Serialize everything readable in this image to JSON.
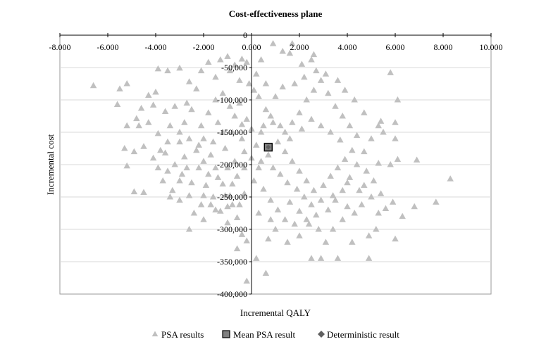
{
  "chart_data": {
    "type": "scatter",
    "title": "Cost-effectiveness plane",
    "xlabel": "Incremental QALY",
    "ylabel": "Incremental cost",
    "xlim": [
      -8,
      10
    ],
    "ylim": [
      -400000,
      0
    ],
    "grid": {
      "horizontal": true,
      "vertical": false
    },
    "legend_position": "bottom",
    "x_ticks": [
      {
        "value": -8,
        "label": "-8.000"
      },
      {
        "value": -6,
        "label": "-6.000"
      },
      {
        "value": -4,
        "label": "-4.000"
      },
      {
        "value": -2,
        "label": "-2.000"
      },
      {
        "value": 0,
        "label": "0.000"
      },
      {
        "value": 2,
        "label": "2.000"
      },
      {
        "value": 4,
        "label": "4.000"
      },
      {
        "value": 6,
        "label": "6.000"
      },
      {
        "value": 8,
        "label": "8.000"
      },
      {
        "value": 10,
        "label": "10.000"
      }
    ],
    "y_ticks": [
      {
        "value": 0,
        "label": "0"
      },
      {
        "value": -50000,
        "label": "-50,000"
      },
      {
        "value": -100000,
        "label": "-100,000"
      },
      {
        "value": -150000,
        "label": "-150,000"
      },
      {
        "value": -200000,
        "label": "-200,000"
      },
      {
        "value": -250000,
        "label": "-250,000"
      },
      {
        "value": -300000,
        "label": "-300,000"
      },
      {
        "value": -350000,
        "label": "-350,000"
      },
      {
        "value": -400000,
        "label": "-400,000"
      }
    ],
    "series": [
      {
        "name": "PSA results",
        "marker": "triangle",
        "color": "#c0c0c0",
        "points": [
          [
            -6.6,
            -78000
          ],
          [
            -5.5,
            -83000
          ],
          [
            -5.2,
            -75000
          ],
          [
            -5.6,
            -107000
          ],
          [
            -5.2,
            -140000
          ],
          [
            -5.3,
            -175000
          ],
          [
            -5.2,
            -202000
          ],
          [
            -4.9,
            -242000
          ],
          [
            -4.5,
            -243000
          ],
          [
            -4.5,
            -172000
          ],
          [
            -4.9,
            -180000
          ],
          [
            -4.7,
            -140000
          ],
          [
            -4.8,
            -129000
          ],
          [
            -4.6,
            -113000
          ],
          [
            -4.3,
            -93000
          ],
          [
            -4.0,
            -88000
          ],
          [
            -3.9,
            -52000
          ],
          [
            -3.5,
            -55000
          ],
          [
            -3.0,
            -51000
          ],
          [
            -2.6,
            -72000
          ],
          [
            -2.7,
            -105000
          ],
          [
            -2.3,
            -83000
          ],
          [
            -2.1,
            -55000
          ],
          [
            -1.8,
            -42000
          ],
          [
            -1.3,
            -38000
          ],
          [
            -1.0,
            -33000
          ],
          [
            -0.7,
            -46000
          ],
          [
            -0.4,
            -37000
          ],
          [
            -0.2,
            -42000
          ],
          [
            0.4,
            -38000
          ],
          [
            0.9,
            -13000
          ],
          [
            1.3,
            -25000
          ],
          [
            1.7,
            -13000
          ],
          [
            2.1,
            -45000
          ],
          [
            2.5,
            -38000
          ],
          [
            2.6,
            -30000
          ],
          [
            1.6,
            -28000
          ],
          [
            -0.9,
            -55000
          ],
          [
            -1.5,
            -65000
          ],
          [
            -0.5,
            -70000
          ],
          [
            -4.1,
            -108000
          ],
          [
            -3.6,
            -118000
          ],
          [
            -3.2,
            -110000
          ],
          [
            -4.3,
            -135000
          ],
          [
            -3.9,
            -152000
          ],
          [
            -3.4,
            -140000
          ],
          [
            -3.0,
            -165000
          ],
          [
            -3.6,
            -182000
          ],
          [
            -3.2,
            -200000
          ],
          [
            -2.8,
            -188000
          ],
          [
            -3.7,
            -225000
          ],
          [
            -3.3,
            -240000
          ],
          [
            -3.0,
            -255000
          ],
          [
            -2.6,
            -248000
          ],
          [
            -2.4,
            -275000
          ],
          [
            -3.4,
            -250000
          ],
          [
            -3.9,
            -205000
          ],
          [
            -2.9,
            -215000
          ],
          [
            -2.5,
            -228000
          ],
          [
            -2.2,
            -205000
          ],
          [
            -1.9,
            -232000
          ],
          [
            -1.6,
            -250000
          ],
          [
            -1.3,
            -272000
          ],
          [
            -1.0,
            -290000
          ],
          [
            -0.6,
            -282000
          ],
          [
            -0.4,
            -308000
          ],
          [
            -0.2,
            -318000
          ],
          [
            -0.6,
            -330000
          ],
          [
            -0.2,
            -380000
          ],
          [
            0.6,
            -368000
          ],
          [
            0.2,
            -345000
          ],
          [
            -1.0,
            -265000
          ],
          [
            -1.5,
            -270000
          ],
          [
            -2.0,
            -285000
          ],
          [
            -2.6,
            -300000
          ],
          [
            -2.3,
            -178000
          ],
          [
            -2.0,
            -160000
          ],
          [
            -2.1,
            -140000
          ],
          [
            -1.8,
            -120000
          ],
          [
            -2.5,
            -115000
          ],
          [
            -2.8,
            -135000
          ],
          [
            -1.5,
            -100000
          ],
          [
            -1.2,
            -90000
          ],
          [
            -0.9,
            -110000
          ],
          [
            -1.4,
            -135000
          ],
          [
            -0.8,
            -150000
          ],
          [
            -1.1,
            -175000
          ],
          [
            -0.7,
            -195000
          ],
          [
            -1.5,
            -205000
          ],
          [
            -1.2,
            -230000
          ],
          [
            -0.9,
            -248000
          ],
          [
            -0.5,
            -262000
          ],
          [
            -0.3,
            -245000
          ],
          [
            -0.6,
            -218000
          ],
          [
            -0.3,
            -180000
          ],
          [
            -0.4,
            -160000
          ],
          [
            -0.2,
            -130000
          ],
          [
            -0.5,
            -105000
          ],
          [
            0.1,
            -85000
          ],
          [
            0.3,
            -95000
          ],
          [
            0.6,
            -115000
          ],
          [
            0.9,
            -135000
          ],
          [
            0.4,
            -150000
          ],
          [
            0.2,
            -170000
          ],
          [
            0.7,
            -185000
          ],
          [
            0.3,
            -205000
          ],
          [
            0.1,
            -225000
          ],
          [
            0.5,
            -238000
          ],
          [
            0.8,
            -255000
          ],
          [
            1.1,
            -270000
          ],
          [
            1.4,
            -285000
          ],
          [
            1.0,
            -300000
          ],
          [
            0.7,
            -315000
          ],
          [
            1.5,
            -320000
          ],
          [
            2.0,
            -310000
          ],
          [
            1.8,
            -292000
          ],
          [
            2.3,
            -285000
          ],
          [
            2.8,
            -300000
          ],
          [
            3.1,
            -320000
          ],
          [
            2.5,
            -345000
          ],
          [
            2.9,
            -345000
          ],
          [
            3.6,
            -345000
          ],
          [
            4.2,
            -320000
          ],
          [
            4.9,
            -310000
          ],
          [
            5.2,
            -300000
          ],
          [
            4.9,
            -345000
          ],
          [
            6.0,
            -315000
          ],
          [
            6.3,
            -280000
          ],
          [
            5.9,
            -258000
          ],
          [
            5.6,
            -268000
          ],
          [
            5.4,
            -245000
          ],
          [
            5.1,
            -225000
          ],
          [
            4.8,
            -210000
          ],
          [
            5.3,
            -198000
          ],
          [
            5.8,
            -200000
          ],
          [
            6.1,
            -192000
          ],
          [
            6.9,
            -193000
          ],
          [
            6.8,
            -265000
          ],
          [
            7.7,
            -258000
          ],
          [
            8.3,
            -222000
          ],
          [
            6.0,
            -160000
          ],
          [
            5.5,
            -150000
          ],
          [
            5.4,
            -133000
          ],
          [
            6.0,
            -135000
          ],
          [
            6.1,
            -100000
          ],
          [
            5.8,
            -58000
          ],
          [
            5.3,
            -140000
          ],
          [
            5.0,
            -160000
          ],
          [
            4.7,
            -180000
          ],
          [
            4.4,
            -200000
          ],
          [
            4.1,
            -220000
          ],
          [
            3.8,
            -240000
          ],
          [
            3.5,
            -255000
          ],
          [
            3.2,
            -270000
          ],
          [
            2.9,
            -255000
          ],
          [
            2.6,
            -240000
          ],
          [
            2.3,
            -225000
          ],
          [
            2.0,
            -210000
          ],
          [
            1.7,
            -195000
          ],
          [
            1.4,
            -180000
          ],
          [
            1.1,
            -165000
          ],
          [
            1.4,
            -150000
          ],
          [
            1.7,
            -135000
          ],
          [
            2.0,
            -120000
          ],
          [
            2.3,
            -100000
          ],
          [
            2.6,
            -85000
          ],
          [
            2.9,
            -70000
          ],
          [
            3.2,
            -90000
          ],
          [
            3.5,
            -110000
          ],
          [
            3.8,
            -125000
          ],
          [
            4.1,
            -140000
          ],
          [
            4.4,
            -155000
          ],
          [
            4.7,
            -120000
          ],
          [
            4.3,
            -100000
          ],
          [
            3.9,
            -85000
          ],
          [
            3.6,
            -70000
          ],
          [
            3.1,
            -60000
          ],
          [
            2.7,
            -55000
          ],
          [
            2.2,
            -65000
          ],
          [
            1.8,
            -75000
          ],
          [
            1.3,
            -80000
          ],
          [
            1.0,
            -95000
          ],
          [
            0.6,
            -75000
          ],
          [
            0.2,
            -60000
          ],
          [
            -0.1,
            -75000
          ],
          [
            -1.7,
            -185000
          ],
          [
            -2.0,
            -195000
          ],
          [
            -1.8,
            -215000
          ],
          [
            -1.4,
            -220000
          ],
          [
            -1.0,
            -205000
          ],
          [
            -0.8,
            -230000
          ],
          [
            -0.3,
            -205000
          ],
          [
            0.0,
            -190000
          ],
          [
            0.4,
            -195000
          ],
          [
            0.9,
            -205000
          ],
          [
            1.2,
            -215000
          ],
          [
            1.5,
            -228000
          ],
          [
            1.9,
            -238000
          ],
          [
            2.2,
            -250000
          ],
          [
            2.5,
            -262000
          ],
          [
            2.7,
            -278000
          ],
          [
            3.0,
            -232000
          ],
          [
            3.3,
            -218000
          ],
          [
            3.6,
            -205000
          ],
          [
            3.9,
            -192000
          ],
          [
            4.2,
            -178000
          ],
          [
            3.7,
            -162000
          ],
          [
            3.3,
            -150000
          ],
          [
            2.9,
            -140000
          ],
          [
            2.5,
            -130000
          ],
          [
            2.1,
            -145000
          ],
          [
            1.6,
            -160000
          ],
          [
            1.2,
            -140000
          ],
          [
            0.8,
            -125000
          ],
          [
            0.5,
            -140000
          ],
          [
            0.0,
            -145000
          ],
          [
            -0.4,
            -138000
          ],
          [
            -0.7,
            -125000
          ],
          [
            -1.2,
            -150000
          ],
          [
            -1.6,
            -165000
          ],
          [
            -2.2,
            -170000
          ],
          [
            -2.6,
            -160000
          ],
          [
            -3.0,
            -150000
          ],
          [
            -3.5,
            -165000
          ],
          [
            -3.8,
            -178000
          ],
          [
            -4.1,
            -190000
          ],
          [
            -3.5,
            -210000
          ],
          [
            -3.0,
            -225000
          ],
          [
            -2.7,
            -205000
          ],
          [
            -2.0,
            -248000
          ],
          [
            -1.7,
            -262000
          ],
          [
            -2.1,
            -262000
          ],
          [
            -0.8,
            -262000
          ],
          [
            -1.1,
            -248000
          ],
          [
            0.3,
            -275000
          ],
          [
            0.8,
            -285000
          ],
          [
            1.6,
            -258000
          ],
          [
            2.0,
            -272000
          ],
          [
            2.4,
            -292000
          ],
          [
            3.4,
            -300000
          ],
          [
            3.8,
            -285000
          ],
          [
            4.3,
            -275000
          ],
          [
            4.6,
            -262000
          ],
          [
            4.5,
            -240000
          ],
          [
            4.0,
            -228000
          ],
          [
            4.7,
            -232000
          ],
          [
            5.0,
            -250000
          ],
          [
            5.3,
            -275000
          ],
          [
            4.0,
            -265000
          ],
          [
            3.4,
            -248000
          ]
        ]
      },
      {
        "name": "Mean PSA result",
        "marker": "square",
        "color": "#808080",
        "points": [
          [
            0.7,
            -173000
          ]
        ]
      },
      {
        "name": "Deterministic result",
        "marker": "diamond",
        "color": "#606060",
        "points": [
          [
            0.7,
            -173000
          ]
        ]
      }
    ]
  }
}
